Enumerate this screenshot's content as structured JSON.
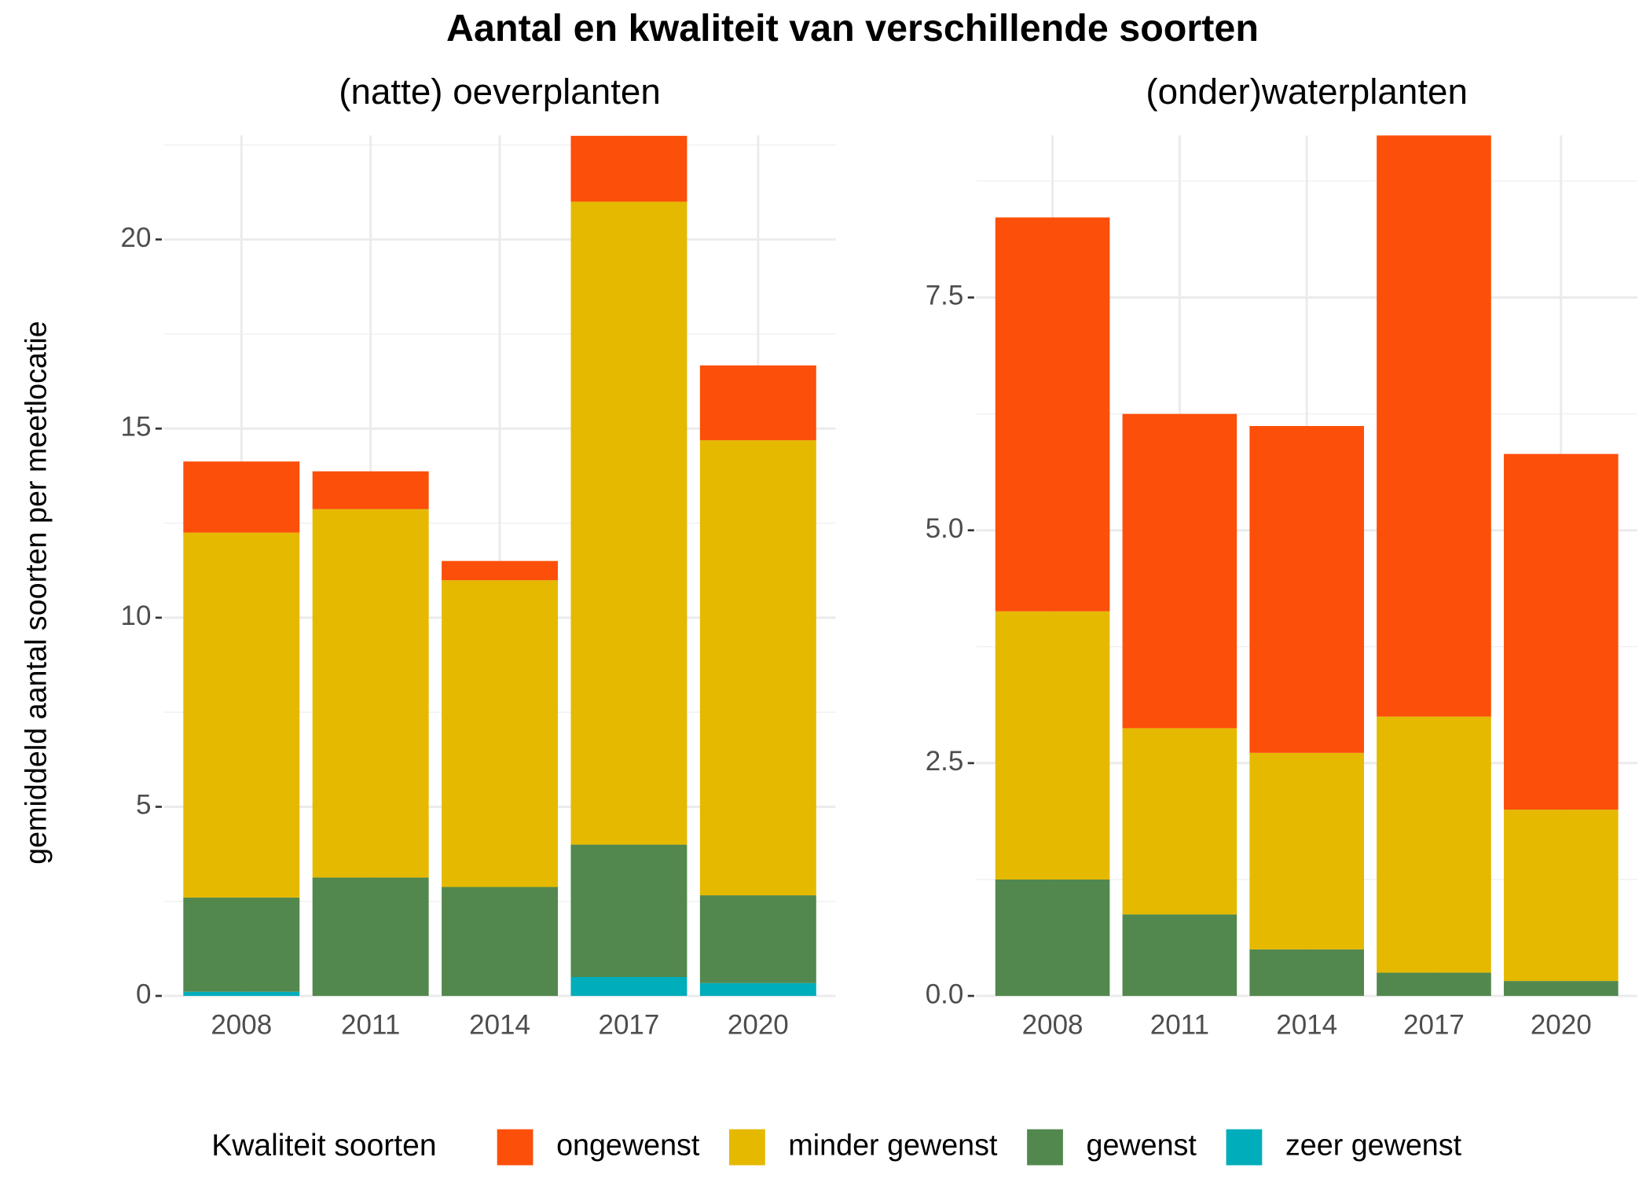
{
  "title": "Aantal en kwaliteit van verschillende soorten",
  "y_axis_label": "gemiddeld aantal soorten per meetlocatie",
  "legend_title": "Kwaliteit soorten",
  "chart_data": [
    {
      "type": "stacked_bar",
      "subtitle": "(natte) oeverplanten",
      "categories": [
        "2008",
        "2011",
        "2014",
        "2017",
        "2020"
      ],
      "series": [
        {
          "name": "ongewenst",
          "color": "#fc4f0a",
          "values": [
            1.88,
            1.0,
            0.51,
            1.74,
            1.98
          ]
        },
        {
          "name": "minder gewenst",
          "color": "#e5b900",
          "values": [
            9.65,
            9.74,
            8.11,
            17.0,
            12.03
          ]
        },
        {
          "name": "gewenst",
          "color": "#52884e",
          "values": [
            2.49,
            3.13,
            2.88,
            3.5,
            2.32
          ]
        },
        {
          "name": "zeer gewenst",
          "color": "#00adbb",
          "values": [
            0.11,
            0,
            0,
            0.5,
            0.34
          ]
        }
      ],
      "ylim": [
        0,
        22.75
      ],
      "yticks": [
        0,
        5,
        10,
        15,
        20
      ],
      "yminor": [
        2.5,
        7.5,
        12.5,
        17.5,
        22.5
      ],
      "grid": true
    },
    {
      "type": "stacked_bar",
      "subtitle": "(onder)waterplanten",
      "categories": [
        "2008",
        "2011",
        "2014",
        "2017",
        "2020"
      ],
      "series": [
        {
          "name": "ongewenst",
          "color": "#fc4f0a",
          "values": [
            4.23,
            3.375,
            3.51,
            6.24,
            3.82
          ]
        },
        {
          "name": "minder gewenst",
          "color": "#e5b900",
          "values": [
            2.88,
            2.0,
            2.11,
            2.75,
            1.84
          ]
        },
        {
          "name": "gewenst",
          "color": "#52884e",
          "values": [
            1.25,
            0.875,
            0.5,
            0.25,
            0.16
          ]
        },
        {
          "name": "zeer gewenst",
          "color": "#00adbb",
          "values": [
            0,
            0,
            0,
            0,
            0
          ]
        }
      ],
      "ylim": [
        0,
        9.24
      ],
      "yticks": [
        {
          "value": 0,
          "label": "0.0"
        },
        {
          "value": 2.5,
          "label": "2.5"
        },
        {
          "value": 5,
          "label": "5.0"
        },
        {
          "value": 7.5,
          "label": "7.5"
        }
      ],
      "yminor": [
        1.25,
        3.75,
        6.25,
        8.75
      ],
      "grid": true
    }
  ]
}
